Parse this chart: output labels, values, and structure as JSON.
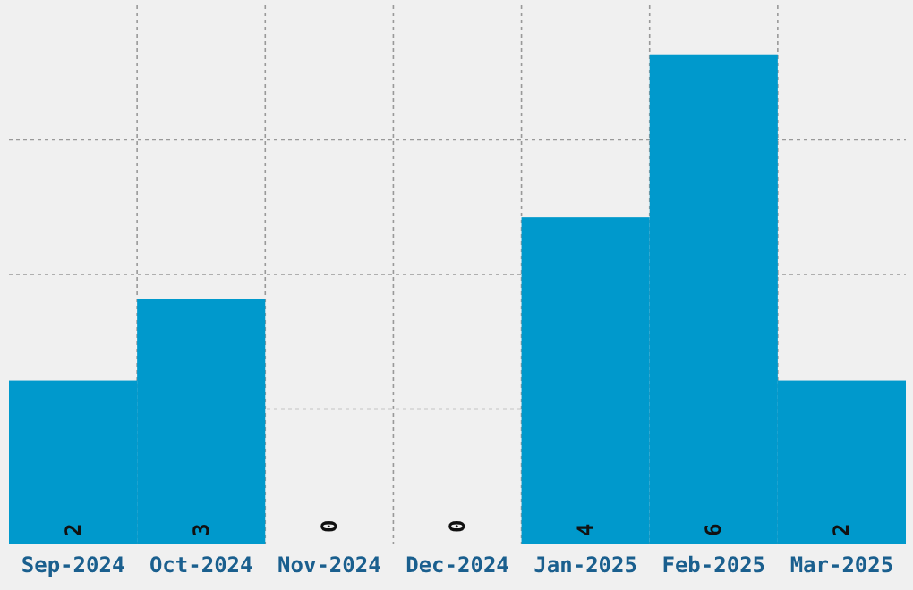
{
  "chart_data": {
    "type": "bar",
    "categories": [
      "Sep-2024",
      "Oct-2024",
      "Nov-2024",
      "Dec-2024",
      "Jan-2025",
      "Feb-2025",
      "Mar-2025"
    ],
    "values": [
      2,
      3,
      0,
      0,
      4,
      6,
      2
    ],
    "color": "#0099cc",
    "data_labels": true,
    "ylim": [
      0,
      6.6
    ],
    "yticks": [
      {
        "value": 1.65,
        "label": null
      },
      {
        "value": 3.3,
        "label": null
      },
      {
        "value": 4.95,
        "label": null
      }
    ],
    "tick_labels": "x",
    "grid": true
  }
}
